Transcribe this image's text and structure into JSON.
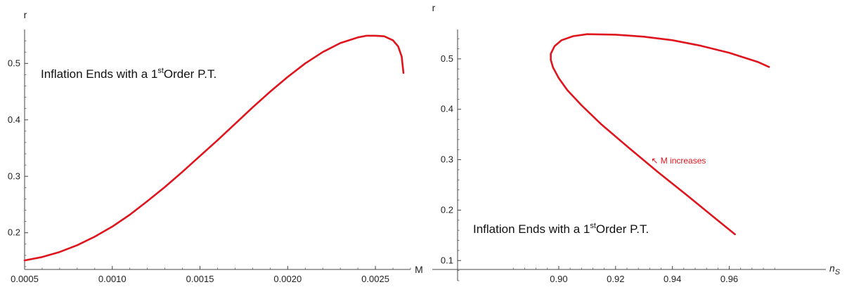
{
  "chart_data": [
    {
      "type": "line",
      "xlabel": "M",
      "ylabel": "r",
      "xlim": [
        0.0005,
        0.0027
      ],
      "ylim": [
        0.135,
        0.575
      ],
      "xticks": [
        0.0005,
        0.001,
        0.0015,
        0.002,
        0.0025
      ],
      "xtick_labels": [
        "0.0005",
        "0.0010",
        "0.0015",
        "0.0020",
        "0.0025"
      ],
      "yticks": [
        0.2,
        0.3,
        0.4,
        0.5
      ],
      "ytick_labels": [
        "0.2",
        "0.3",
        "0.4",
        "0.5"
      ],
      "annotation": {
        "prefix": "Inflation Ends with a 1",
        "sup": "st",
        "suffix": "Order P.T."
      },
      "series": [
        {
          "color": "#e0141c",
          "x": [
            0.0005,
            0.0006,
            0.0007,
            0.0008,
            0.0009,
            0.001,
            0.0011,
            0.0012,
            0.0013,
            0.0014,
            0.0015,
            0.0016,
            0.0017,
            0.0018,
            0.0019,
            0.002,
            0.0021,
            0.0022,
            0.0023,
            0.0024,
            0.00245,
            0.0025,
            0.00255,
            0.0026,
            0.00263,
            0.00265,
            0.00266
          ],
          "y": [
            0.151,
            0.157,
            0.166,
            0.178,
            0.193,
            0.211,
            0.232,
            0.256,
            0.281,
            0.308,
            0.336,
            0.364,
            0.393,
            0.422,
            0.45,
            0.476,
            0.5,
            0.52,
            0.536,
            0.546,
            0.549,
            0.549,
            0.548,
            0.541,
            0.53,
            0.512,
            0.483
          ]
        }
      ]
    },
    {
      "type": "line",
      "xlabel_base": "n",
      "xlabel_sub": "S",
      "ylabel": "r",
      "xlim": [
        0.8555,
        0.994
      ],
      "ylim": [
        0.06,
        0.575
      ],
      "xticks": [
        0.9,
        0.92,
        0.94,
        0.96
      ],
      "xtick_labels": [
        "0.90",
        "0.92",
        "0.94",
        "0.96"
      ],
      "yticks": [
        0.1,
        0.2,
        0.3,
        0.4,
        0.5
      ],
      "ytick_labels": [
        "0.1",
        "0.2",
        "0.3",
        "0.4",
        "0.5"
      ],
      "annotation": {
        "prefix": "Inflation Ends with a 1",
        "sup": "st",
        "suffix": "Order P.T."
      },
      "arrow_note": {
        "arrow": "↖",
        "text": "M increases",
        "x": 0.9325,
        "y": 0.298
      },
      "series": [
        {
          "color": "#e0141c",
          "x": [
            0.962,
            0.955,
            0.945,
            0.935,
            0.925,
            0.915,
            0.908,
            0.903,
            0.9,
            0.898,
            0.8972,
            0.8972,
            0.8985,
            0.901,
            0.905,
            0.91,
            0.92,
            0.93,
            0.94,
            0.95,
            0.96,
            0.97,
            0.974
          ],
          "y": [
            0.152,
            0.184,
            0.23,
            0.275,
            0.322,
            0.37,
            0.408,
            0.438,
            0.462,
            0.483,
            0.498,
            0.51,
            0.525,
            0.537,
            0.545,
            0.549,
            0.548,
            0.544,
            0.537,
            0.526,
            0.512,
            0.494,
            0.484
          ]
        }
      ]
    }
  ]
}
